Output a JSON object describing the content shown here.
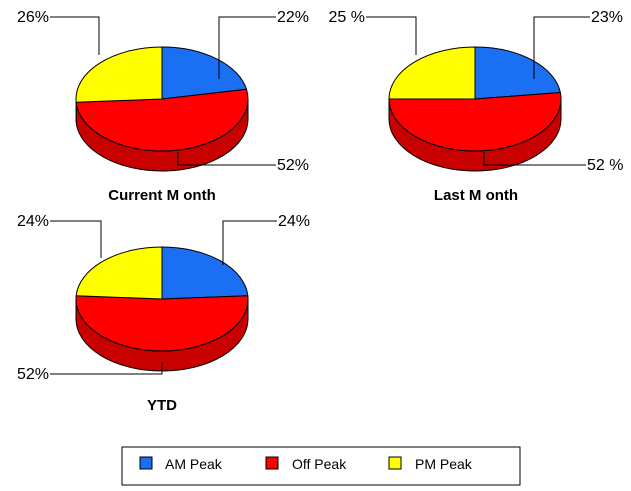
{
  "chart_data": [
    {
      "type": "pie",
      "title": "Current M onth",
      "categories": [
        "AM Peak",
        "Off Peak",
        "PM Peak"
      ],
      "values": [
        22,
        52,
        26
      ],
      "value_labels": [
        "22%",
        "52%",
        "26%"
      ]
    },
    {
      "type": "pie",
      "title": "Last M onth",
      "categories": [
        "AM Peak",
        "Off Peak",
        "PM Peak"
      ],
      "values": [
        23,
        52,
        25
      ],
      "value_labels": [
        "23%",
        "52 %",
        "25 %"
      ]
    },
    {
      "type": "pie",
      "title": "YTD",
      "categories": [
        "AM Peak",
        "Off Peak",
        "PM Peak"
      ],
      "values": [
        24,
        52,
        24
      ],
      "value_labels": [
        "24%",
        "52%",
        "24%"
      ]
    }
  ],
  "legend": {
    "items": [
      {
        "label": "AM Peak",
        "color": "#1a6ff2"
      },
      {
        "label": "Off Peak",
        "color": "#ff0000"
      },
      {
        "label": "PM Peak",
        "color": "#ffff00"
      }
    ]
  },
  "colors": {
    "am_peak": "#1a6ff2",
    "off_peak": "#ff0000",
    "pm_peak": "#ffff00",
    "off_peak_side": "#c80000",
    "outline": "#000000"
  }
}
